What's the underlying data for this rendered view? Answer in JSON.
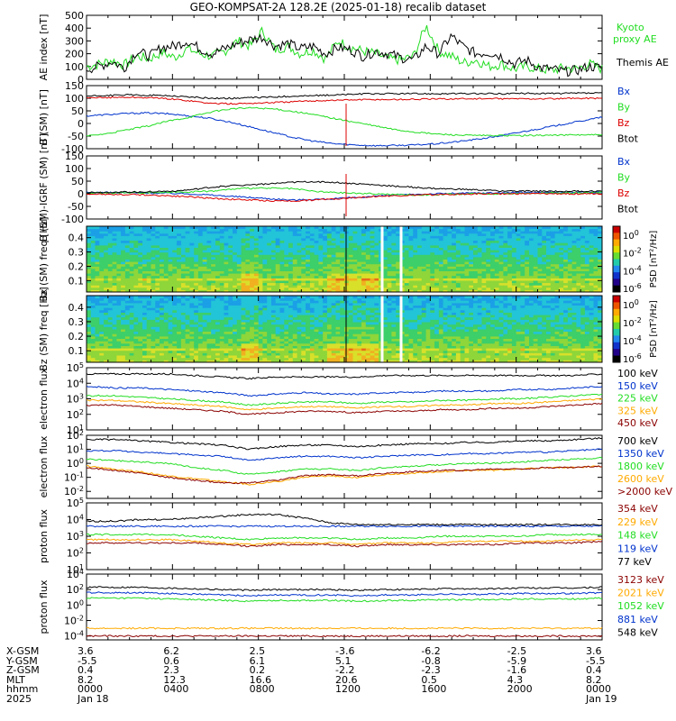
{
  "title": "GEO-KOMPSAT-2A 128.2E (2025-01-18) recalib dataset",
  "colors": {
    "black": "#000000",
    "blue": "#0033cc",
    "green": "#22dd22",
    "red": "#dd0000",
    "orange": "#ffaa00",
    "darkred": "#8b0000"
  },
  "chart_data": [
    {
      "type": "line",
      "ylabel": "AE index [nT]",
      "ylim": [
        0,
        500
      ],
      "yticks": [
        "0",
        "100",
        "200",
        "300",
        "400",
        "500"
      ],
      "series": [
        {
          "name": "Kyoto proxy AE",
          "color": "green",
          "values": [
            100,
            120,
            150,
            110,
            180,
            160,
            210,
            170,
            240,
            200,
            180,
            220,
            300,
            260,
            380,
            230,
            260,
            200,
            230,
            160,
            300,
            250,
            220,
            200,
            160,
            150,
            180,
            420,
            220,
            180,
            130,
            150,
            100,
            120,
            80,
            100,
            80,
            70,
            90,
            80,
            120,
            80
          ]
        },
        {
          "name": "Themis AE",
          "color": "black",
          "values": [
            80,
            100,
            140,
            90,
            220,
            180,
            250,
            260,
            300,
            240,
            200,
            240,
            280,
            310,
            330,
            260,
            280,
            240,
            260,
            200,
            250,
            230,
            180,
            220,
            200,
            170,
            150,
            260,
            200,
            340,
            250,
            200,
            210,
            180,
            120,
            150,
            90,
            80,
            60,
            70,
            100,
            90
          ]
        }
      ]
    },
    {
      "type": "line",
      "ylabel": "B (SM) [nT]",
      "ylim": [
        -100,
        150
      ],
      "yticks": [
        "-100",
        "-50",
        "0",
        "50",
        "100",
        "150"
      ],
      "series": [
        {
          "name": "Bx",
          "color": "blue",
          "values": [
            30,
            35,
            40,
            42,
            38,
            30,
            20,
            5,
            -15,
            -35,
            -55,
            -70,
            -80,
            -85,
            -88,
            -87,
            -85,
            -80,
            -72,
            -62,
            -50,
            -35,
            -20,
            -5,
            10,
            25
          ]
        },
        {
          "name": "By",
          "color": "green",
          "values": [
            -50,
            -40,
            -25,
            -10,
            10,
            25,
            45,
            58,
            62,
            58,
            48,
            35,
            20,
            5,
            -10,
            -25,
            -35,
            -42,
            -46,
            -48,
            -48,
            -48,
            -47,
            -46,
            -45,
            -45
          ]
        },
        {
          "name": "Bz",
          "color": "red",
          "values": [
            100,
            103,
            104,
            102,
            98,
            90,
            80,
            78,
            80,
            83,
            86,
            90,
            92,
            94,
            95,
            95,
            96,
            97,
            98,
            98,
            98,
            98,
            98,
            98,
            100,
            100
          ]
        },
        {
          "name": "Btot",
          "color": "black",
          "values": [
            108,
            111,
            113,
            112,
            110,
            105,
            100,
            100,
            102,
            105,
            108,
            110,
            113,
            116,
            118,
            118,
            118,
            118,
            118,
            118,
            118,
            119,
            119,
            119,
            120,
            120
          ]
        }
      ]
    },
    {
      "type": "line",
      "ylabel": "B (SM)-IGRF (SM) [nT]",
      "ylim": [
        -100,
        150
      ],
      "yticks": [
        "-100",
        "-50",
        "0",
        "50",
        "100",
        "150"
      ],
      "series": [
        {
          "name": "Bx",
          "color": "blue",
          "values": [
            5,
            5,
            4,
            3,
            2,
            0,
            -5,
            -10,
            -15,
            -20,
            -25,
            -22,
            -20,
            -15,
            -10,
            -5,
            -2,
            0,
            2,
            3,
            4,
            5,
            5,
            5,
            5,
            5
          ]
        },
        {
          "name": "By",
          "color": "green",
          "values": [
            3,
            4,
            4,
            5,
            6,
            8,
            10,
            18,
            22,
            22,
            20,
            10,
            5,
            2,
            0,
            -3,
            -5,
            -3,
            -2,
            0,
            0,
            1,
            2,
            3,
            4,
            5
          ]
        },
        {
          "name": "Bz",
          "color": "red",
          "values": [
            0,
            -2,
            -3,
            -5,
            -8,
            -12,
            -18,
            -22,
            -25,
            -28,
            -28,
            -25,
            -20,
            -15,
            -10,
            -8,
            -5,
            -3,
            -2,
            0,
            0,
            0,
            0,
            0,
            0,
            0
          ]
        },
        {
          "name": "Btot",
          "color": "black",
          "values": [
            5,
            6,
            7,
            8,
            10,
            15,
            25,
            32,
            36,
            40,
            45,
            48,
            45,
            40,
            35,
            30,
            25,
            20,
            18,
            15,
            12,
            10,
            10,
            10,
            10,
            10
          ]
        }
      ]
    },
    {
      "type": "heatmap",
      "ylabel": "Bx (SM) freq [Hz]",
      "ylim": [
        0.02,
        0.48
      ],
      "yticks": [
        "0.1",
        "0.2",
        "0.3",
        "0.4"
      ],
      "colorbar": {
        "label": "PSD [nT²/Hz]",
        "ticks": [
          "10^0",
          "10^-2",
          "10^-4",
          "10^-6"
        ]
      }
    },
    {
      "type": "heatmap",
      "ylabel": "Bz (SM) freq [Hz]",
      "ylim": [
        0.02,
        0.48
      ],
      "yticks": [
        "0.1",
        "0.2",
        "0.3",
        "0.4"
      ],
      "colorbar": {
        "label": "PSD [nT²/Hz]",
        "ticks": [
          "10^0",
          "10^-2",
          "10^-4",
          "10^-6"
        ]
      }
    },
    {
      "type": "line",
      "ylabel": "electron flux",
      "yscale": "log",
      "ylim": [
        1,
        5
      ],
      "yticks": [
        "10^1",
        "10^2",
        "10^3",
        "10^4",
        "10^5"
      ],
      "series": [
        {
          "name": "100 keV",
          "color": "black",
          "values": [
            4.6,
            4.6,
            4.6,
            4.6,
            4.5,
            4.4,
            4.3,
            4.4,
            4.4,
            4.4,
            4.4,
            4.5,
            4.5,
            4.5,
            4.5,
            4.5,
            4.5,
            4.5,
            4.5,
            4.6
          ]
        },
        {
          "name": "150 keV",
          "color": "blue",
          "values": [
            3.8,
            3.7,
            3.7,
            3.6,
            3.5,
            3.4,
            3.2,
            3.3,
            3.4,
            3.3,
            3.3,
            3.4,
            3.4,
            3.5,
            3.5,
            3.5,
            3.6,
            3.6,
            3.7,
            3.8
          ]
        },
        {
          "name": "225 keV",
          "color": "green",
          "values": [
            3.2,
            3.2,
            3.1,
            3.0,
            2.9,
            2.8,
            2.6,
            2.7,
            2.8,
            2.8,
            2.7,
            2.8,
            2.8,
            2.9,
            2.9,
            3.0,
            3.0,
            3.1,
            3.2,
            3.3
          ]
        },
        {
          "name": "325 keV",
          "color": "orange",
          "values": [
            2.9,
            2.9,
            2.8,
            2.7,
            2.6,
            2.5,
            2.3,
            2.4,
            2.5,
            2.5,
            2.4,
            2.5,
            2.5,
            2.6,
            2.6,
            2.7,
            2.7,
            2.8,
            2.9,
            3.0
          ]
        },
        {
          "name": "450 keV",
          "color": "darkred",
          "values": [
            2.6,
            2.6,
            2.5,
            2.4,
            2.3,
            2.2,
            2.0,
            2.1,
            2.2,
            2.2,
            2.1,
            2.2,
            2.2,
            2.3,
            2.3,
            2.4,
            2.4,
            2.5,
            2.6,
            2.7
          ]
        }
      ]
    },
    {
      "type": "line",
      "ylabel": "electron flux",
      "yscale": "log",
      "ylim": [
        -2.5,
        2
      ],
      "yticks": [
        "10^-2",
        "10^-1",
        "10^0",
        "10^1",
        "10^2"
      ],
      "series": [
        {
          "name": "700 keV",
          "color": "black",
          "values": [
            1.7,
            1.7,
            1.6,
            1.5,
            1.4,
            1.3,
            1.0,
            1.2,
            1.3,
            1.3,
            1.2,
            1.3,
            1.4,
            1.4,
            1.5,
            1.5,
            1.6,
            1.6,
            1.7,
            1.8
          ]
        },
        {
          "name": "1350 keV",
          "color": "blue",
          "values": [
            0.9,
            0.9,
            0.8,
            0.7,
            0.6,
            0.5,
            0.2,
            0.4,
            0.5,
            0.5,
            0.4,
            0.5,
            0.6,
            0.6,
            0.7,
            0.7,
            0.8,
            0.8,
            0.9,
            1.0
          ]
        },
        {
          "name": "1800 keV",
          "color": "green",
          "values": [
            0.3,
            0.2,
            0.1,
            0.0,
            -0.3,
            -0.5,
            -0.8,
            -0.6,
            -0.4,
            -0.4,
            -0.5,
            -0.3,
            -0.2,
            -0.1,
            0.0,
            0.0,
            0.1,
            0.2,
            0.3,
            0.4
          ]
        },
        {
          "name": "2600 keV",
          "color": "orange",
          "values": [
            -0.2,
            -0.4,
            -0.6,
            -0.9,
            -1.1,
            -1.3,
            -1.5,
            -1.3,
            -1.0,
            -0.9,
            -1.0,
            -0.8,
            -0.7,
            -0.6,
            -0.5,
            -0.5,
            -0.4,
            -0.3,
            -0.3,
            -0.2
          ]
        },
        {
          "name": ">2000 keV",
          "color": "darkred",
          "values": [
            -0.3,
            -0.5,
            -0.7,
            -1.0,
            -1.2,
            -1.4,
            -1.4,
            -1.2,
            -0.9,
            -0.8,
            -0.9,
            -0.7,
            -0.6,
            -0.5,
            -0.5,
            -0.4,
            -0.4,
            -0.3,
            -0.3,
            -0.2
          ]
        }
      ]
    },
    {
      "type": "line",
      "ylabel": "proton flux",
      "yscale": "log",
      "ylim": [
        1,
        5
      ],
      "yticks": [
        "10^1",
        "10^2",
        "10^3",
        "10^4",
        "10^5"
      ],
      "series": [
        {
          "name": "354 keV",
          "color": "darkred",
          "values": [
            2.6,
            2.6,
            2.6,
            2.6,
            2.6,
            2.5,
            2.4,
            2.5,
            2.5,
            2.5,
            2.4,
            2.5,
            2.5,
            2.5,
            2.5,
            2.5,
            2.6,
            2.6,
            2.6,
            2.7
          ]
        },
        {
          "name": "229 keV",
          "color": "orange",
          "values": [
            2.8,
            2.8,
            2.8,
            2.8,
            2.7,
            2.6,
            2.5,
            2.6,
            2.6,
            2.6,
            2.5,
            2.6,
            2.6,
            2.6,
            2.7,
            2.7,
            2.7,
            2.7,
            2.8,
            2.8
          ]
        },
        {
          "name": "148 keV",
          "color": "green",
          "values": [
            3.1,
            3.1,
            3.1,
            3.1,
            3.0,
            2.9,
            2.8,
            2.9,
            2.9,
            2.9,
            2.8,
            2.9,
            2.9,
            3.0,
            3.0,
            3.0,
            3.0,
            3.1,
            3.1,
            3.1
          ]
        },
        {
          "name": "119 keV",
          "color": "blue",
          "values": [
            3.6,
            3.6,
            3.6,
            3.6,
            3.6,
            3.6,
            3.6,
            3.6,
            3.6,
            3.6,
            3.6,
            3.6,
            3.6,
            3.6,
            3.6,
            3.6,
            3.6,
            3.6,
            3.6,
            3.6
          ]
        },
        {
          "name": "77 keV",
          "color": "black",
          "values": [
            3.9,
            3.9,
            4.0,
            4.0,
            4.1,
            4.2,
            4.3,
            4.3,
            4.1,
            3.8,
            3.7,
            3.7,
            3.7,
            3.7,
            3.7,
            3.7,
            3.7,
            3.7,
            3.7,
            3.7
          ]
        }
      ]
    },
    {
      "type": "line",
      "ylabel": "proton flux",
      "yscale": "log",
      "ylim": [
        -4.5,
        4
      ],
      "yticks": [
        "10^-4",
        "10^-2",
        "10^0",
        "10^2",
        "10^4"
      ],
      "series": [
        {
          "name": "3123 keV",
          "color": "darkred",
          "values": [
            -4.0,
            -4.0,
            -4.0,
            -4.0,
            -4.0,
            -4.0,
            -4.0,
            -4.0,
            -4.0,
            -4.0,
            -4.0,
            -4.0,
            -4.0,
            -4.0,
            -4.0,
            -4.0,
            -4.0,
            -4.0,
            -4.0,
            -4.0
          ]
        },
        {
          "name": "2021 keV",
          "color": "orange",
          "values": [
            -3.0,
            -3.0,
            -3.0,
            -3.0,
            -3.0,
            -3.0,
            -3.0,
            -3.0,
            -3.0,
            -3.0,
            -3.0,
            -3.0,
            -3.0,
            -3.0,
            -3.0,
            -3.0,
            -3.0,
            -3.0,
            -3.0,
            -3.0
          ]
        },
        {
          "name": "1052 keV",
          "color": "green",
          "values": [
            0.9,
            0.9,
            0.9,
            0.8,
            0.7,
            0.6,
            0.5,
            0.6,
            0.6,
            0.6,
            0.5,
            0.6,
            0.6,
            0.7,
            0.7,
            0.7,
            0.8,
            0.8,
            0.8,
            0.9
          ]
        },
        {
          "name": "881 keV",
          "color": "blue",
          "values": [
            1.6,
            1.6,
            1.6,
            1.5,
            1.4,
            1.3,
            1.2,
            1.3,
            1.3,
            1.3,
            1.2,
            1.3,
            1.3,
            1.4,
            1.4,
            1.4,
            1.5,
            1.5,
            1.5,
            1.6
          ]
        },
        {
          "name": "548 keV",
          "color": "black",
          "values": [
            2.3,
            2.3,
            2.3,
            2.2,
            2.1,
            2.0,
            1.9,
            2.0,
            2.0,
            2.0,
            1.9,
            2.0,
            2.0,
            2.1,
            2.1,
            2.1,
            2.2,
            2.2,
            2.2,
            2.3
          ]
        }
      ]
    }
  ],
  "ephemeris": {
    "rows": [
      {
        "label": "X-GSM",
        "values": [
          "3.6",
          "6.2",
          "2.5",
          "-3.6",
          "-6.2",
          "-2.5",
          "3.6"
        ]
      },
      {
        "label": "Y-GSM",
        "values": [
          "-5.5",
          "0.6",
          "6.1",
          "5.1",
          "-0.8",
          "-5.9",
          "-5.5"
        ]
      },
      {
        "label": "Z-GSM",
        "values": [
          "0.4",
          "2.3",
          "0.2",
          "-2.2",
          "-2.3",
          "-1.6",
          "0.4"
        ]
      },
      {
        "label": "MLT",
        "values": [
          "8.2",
          "12.3",
          "16.6",
          "20.6",
          "0.5",
          "4.3",
          "8.2"
        ]
      },
      {
        "label": "hhmm",
        "values": [
          "0000",
          "0400",
          "0800",
          "1200",
          "1600",
          "2000",
          "0000"
        ]
      },
      {
        "label": "2025",
        "values": [
          "Jan 18",
          "",
          "",
          "",
          "",
          "",
          "Jan 19"
        ]
      }
    ]
  }
}
